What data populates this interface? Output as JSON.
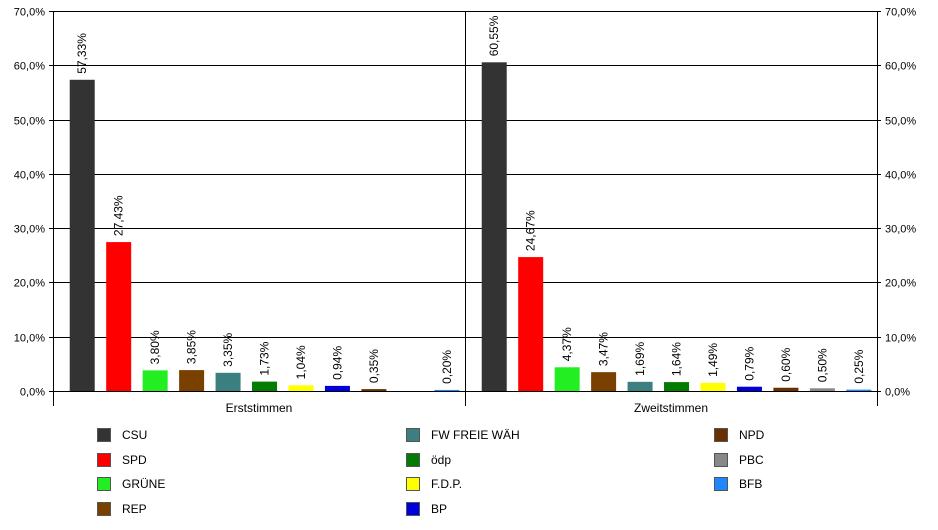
{
  "chart_data": {
    "type": "bar",
    "y_axis": {
      "min": 0,
      "max": 70,
      "step": 10,
      "tick_labels": [
        "0,0%",
        "10,0%",
        "20,0%",
        "30,0%",
        "40,0%",
        "50,0%",
        "60,0%",
        "70,0%"
      ]
    },
    "grid": true,
    "legend_position": "bottom",
    "groups": [
      {
        "name": "Erststimmen",
        "bars": [
          {
            "party": "CSU",
            "value": 57.33,
            "label": "57,33%"
          },
          {
            "party": "SPD",
            "value": 27.43,
            "label": "27,43%"
          },
          {
            "party": "GRÜNE",
            "value": 3.8,
            "label": "3,80%"
          },
          {
            "party": "REP",
            "value": 3.85,
            "label": "3,85%"
          },
          {
            "party": "FW FREIE WÄH",
            "value": 3.35,
            "label": "3,35%"
          },
          {
            "party": "ödp",
            "value": 1.73,
            "label": "1,73%"
          },
          {
            "party": "F.D.P.",
            "value": 1.04,
            "label": "1,04%"
          },
          {
            "party": "BP",
            "value": 0.94,
            "label": "0,94%"
          },
          {
            "party": "NPD",
            "value": 0.35,
            "label": "0,35%"
          },
          {
            "party": "PBC",
            "value": null,
            "label": ""
          },
          {
            "party": "BFB",
            "value": 0.2,
            "label": "0,20%"
          }
        ]
      },
      {
        "name": "Zweitstimmen",
        "bars": [
          {
            "party": "CSU",
            "value": 60.55,
            "label": "60,55%"
          },
          {
            "party": "SPD",
            "value": 24.67,
            "label": "24,67%"
          },
          {
            "party": "GRÜNE",
            "value": 4.37,
            "label": "4,37%"
          },
          {
            "party": "REP",
            "value": 3.47,
            "label": "3,47%"
          },
          {
            "party": "FW FREIE WÄH",
            "value": 1.69,
            "label": "1,69%"
          },
          {
            "party": "ödp",
            "value": 1.64,
            "label": "1,64%"
          },
          {
            "party": "F.D.P.",
            "value": 1.49,
            "label": "1,49%"
          },
          {
            "party": "BP",
            "value": 0.79,
            "label": "0,79%"
          },
          {
            "party": "NPD",
            "value": 0.6,
            "label": "0,60%"
          },
          {
            "party": "PBC",
            "value": 0.5,
            "label": "0,50%"
          },
          {
            "party": "BFB",
            "value": 0.25,
            "label": "0,25%"
          }
        ]
      }
    ],
    "legend": [
      {
        "label": "CSU",
        "color": "#333333"
      },
      {
        "label": "SPD",
        "color": "#ff0000"
      },
      {
        "label": "GRÜNE",
        "color": "#22ee22"
      },
      {
        "label": "REP",
        "color": "#7a4000"
      },
      {
        "label": "FW FREIE WÄH",
        "color": "#3b7f80"
      },
      {
        "label": "ödp",
        "color": "#037c03"
      },
      {
        "label": "F.D.P.",
        "color": "#ffff00"
      },
      {
        "label": "BP",
        "color": "#0000dd"
      },
      {
        "label": "NPD",
        "color": "#6b3000"
      },
      {
        "label": "PBC",
        "color": "#888888"
      },
      {
        "label": "BFB",
        "color": "#1e88ff"
      }
    ]
  }
}
